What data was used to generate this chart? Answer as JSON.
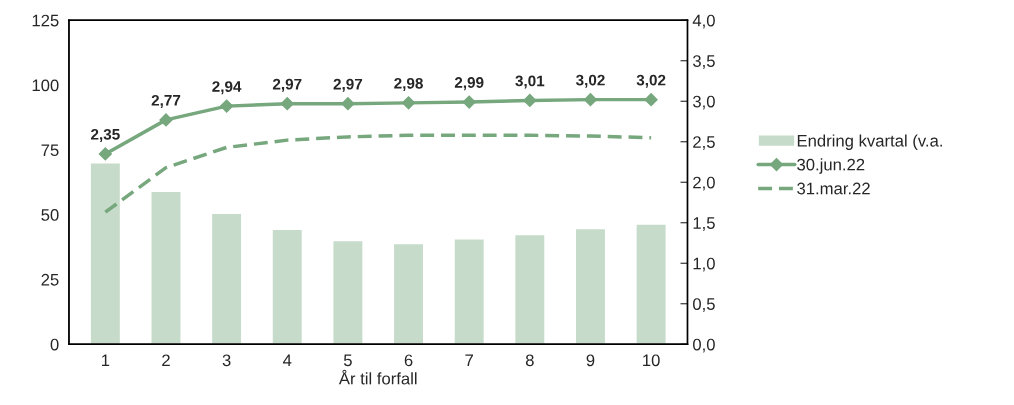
{
  "chart_data": {
    "type": "bar",
    "xlabel": "År til forfall",
    "categories": [
      "1",
      "2",
      "3",
      "4",
      "5",
      "6",
      "7",
      "8",
      "9",
      "10"
    ],
    "series": [
      {
        "name": "Endring kvartal (v.a.",
        "color": "#c6dbc9",
        "values": [
          70,
          59,
          50.5,
          44.3,
          40,
          38.8,
          40.7,
          42.3,
          44.6,
          46.4
        ]
      },
      {
        "name": "30.jun.22",
        "type": "line",
        "axis": "y2",
        "color": "#76a77d",
        "marker": "diamond",
        "line_style": "solid",
        "values": [
          2.35,
          2.77,
          2.94,
          2.97,
          2.97,
          2.98,
          2.99,
          3.01,
          3.02,
          3.02
        ],
        "value_labels": [
          "2,35",
          "2,77",
          "2,94",
          "2,97",
          "2,97",
          "2,98",
          "2,99",
          "3,01",
          "3,02",
          "3,02"
        ]
      },
      {
        "name": "31.mar.22",
        "type": "line",
        "axis": "y2",
        "color": "#76a77d",
        "marker": "none",
        "line_style": "dashed",
        "values": [
          1.63,
          2.18,
          2.43,
          2.52,
          2.56,
          2.58,
          2.58,
          2.58,
          2.57,
          2.55
        ]
      }
    ],
    "ylim": [
      0,
      125
    ],
    "yticks": [
      0,
      25,
      50,
      75,
      100,
      125
    ],
    "y2lim": [
      0,
      4
    ],
    "y2ticks": [
      {
        "value": 0,
        "label": "0,0"
      },
      {
        "value": 0.5,
        "label": "0,5"
      },
      {
        "value": 1,
        "label": "1,0"
      },
      {
        "value": 1.5,
        "label": "1,5"
      },
      {
        "value": 2,
        "label": "2,0"
      },
      {
        "value": 2.5,
        "label": "2,5"
      },
      {
        "value": 3,
        "label": "3,0"
      },
      {
        "value": 3.5,
        "label": "3,5"
      },
      {
        "value": 4,
        "label": "4,0"
      }
    ],
    "grid": false,
    "legend": "right"
  }
}
